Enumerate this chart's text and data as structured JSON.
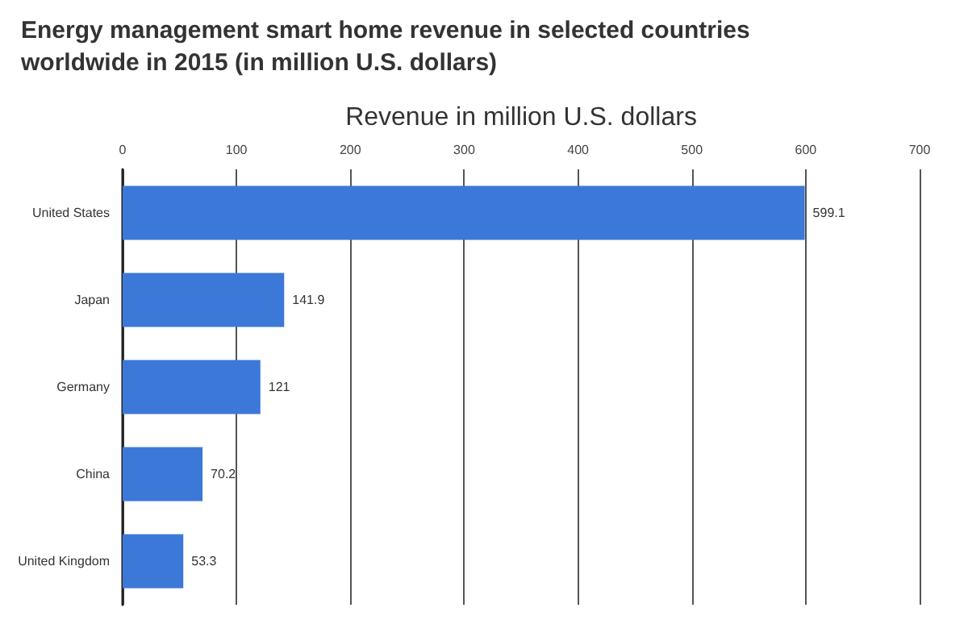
{
  "chart_data": {
    "type": "bar",
    "orientation": "horizontal",
    "title": "Energy management smart home revenue in selected countries\nworldwide in 2015 (in million U.S. dollars)",
    "xlabel": "Revenue in million U.S. dollars",
    "categories": [
      "United States",
      "Japan",
      "Germany",
      "China",
      "United Kingdom"
    ],
    "values": [
      599.1,
      141.9,
      121,
      70.2,
      53.3
    ],
    "color": "#3c78d8",
    "xlim": [
      0,
      700
    ],
    "xticks": [
      0,
      100,
      200,
      300,
      400,
      500,
      600,
      700
    ],
    "grid": "x",
    "data_labels": true
  }
}
